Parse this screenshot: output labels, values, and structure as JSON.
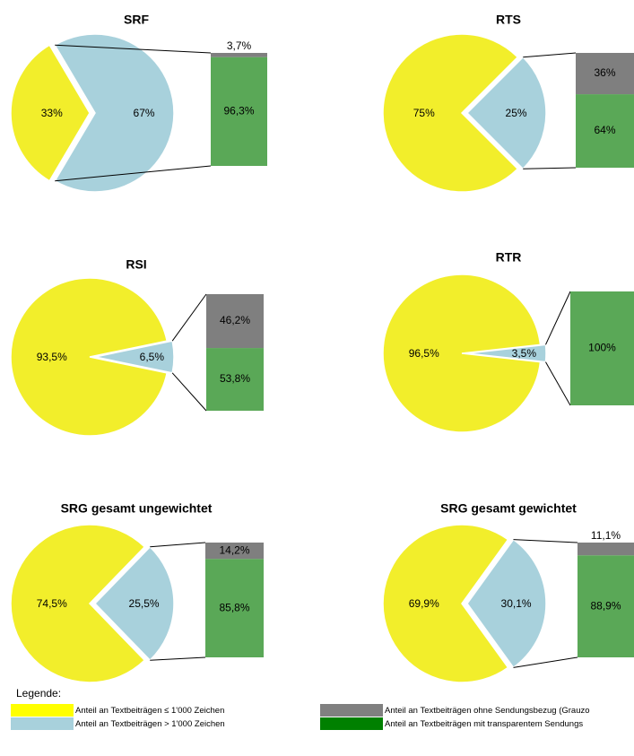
{
  "chart_data": [
    {
      "type": "pie",
      "title": "SRF",
      "slices": [
        {
          "label": "33%",
          "value": 33,
          "color": "#f2ee2b"
        },
        {
          "label": "67%",
          "value": 67,
          "color": "#a8d1dc"
        }
      ],
      "bar": [
        {
          "label": "96,3%",
          "value": 96.3,
          "color": "#5aa857"
        },
        {
          "label": "3,7%",
          "value": 3.7,
          "color": "#7f7f7f"
        }
      ]
    },
    {
      "type": "pie",
      "title": "RTS",
      "slices": [
        {
          "label": "75%",
          "value": 75,
          "color": "#f2ee2b"
        },
        {
          "label": "25%",
          "value": 25,
          "color": "#a8d1dc"
        }
      ],
      "bar": [
        {
          "label": "64%",
          "value": 64,
          "color": "#5aa857"
        },
        {
          "label": "36%",
          "value": 36,
          "color": "#7f7f7f"
        }
      ]
    },
    {
      "type": "pie",
      "title": "RSI",
      "slices": [
        {
          "label": "93,5%",
          "value": 93.5,
          "color": "#f2ee2b"
        },
        {
          "label": "6,5%",
          "value": 6.5,
          "color": "#a8d1dc"
        }
      ],
      "bar": [
        {
          "label": "53,8%",
          "value": 53.8,
          "color": "#5aa857"
        },
        {
          "label": "46,2%",
          "value": 46.2,
          "color": "#7f7f7f"
        }
      ]
    },
    {
      "type": "pie",
      "title": "RTR",
      "slices": [
        {
          "label": "96,5%",
          "value": 96.5,
          "color": "#f2ee2b"
        },
        {
          "label": "3,5%",
          "value": 3.5,
          "color": "#a8d1dc"
        }
      ],
      "bar": [
        {
          "label": "100%",
          "value": 100,
          "color": "#5aa857"
        }
      ]
    },
    {
      "type": "pie",
      "title": "SRG gesamt ungewichtet",
      "slices": [
        {
          "label": "74,5%",
          "value": 74.5,
          "color": "#f2ee2b"
        },
        {
          "label": "25,5%",
          "value": 25.5,
          "color": "#a8d1dc"
        }
      ],
      "bar": [
        {
          "label": "85,8%",
          "value": 85.8,
          "color": "#5aa857"
        },
        {
          "label": "14,2%",
          "value": 14.2,
          "color": "#7f7f7f"
        }
      ]
    },
    {
      "type": "pie",
      "title": "SRG gesamt gewichtet",
      "slices": [
        {
          "label": "69,9%",
          "value": 69.9,
          "color": "#f2ee2b"
        },
        {
          "label": "30,1%",
          "value": 30.1,
          "color": "#a8d1dc"
        }
      ],
      "bar": [
        {
          "label": "88,9%",
          "value": 88.9,
          "color": "#5aa857"
        },
        {
          "label": "11,1%",
          "value": 11.1,
          "color": "#7f7f7f"
        }
      ]
    }
  ],
  "legend": {
    "title": "Legende:",
    "items": [
      {
        "label": "Anteil an Textbeiträgen ≤ 1'000 Zeichen",
        "color": "#ffff00"
      },
      {
        "label": "Anteil an Textbeiträgen > 1'000 Zeichen",
        "color": "#a8d1dc"
      },
      {
        "label": "Anteil an Textbeiträgen ohne Sendungsbezug (Grauzo",
        "color": "#808080"
      },
      {
        "label": "Anteil an Textbeiträgen mit transparentem Sendungs",
        "color": "#008000"
      }
    ]
  }
}
